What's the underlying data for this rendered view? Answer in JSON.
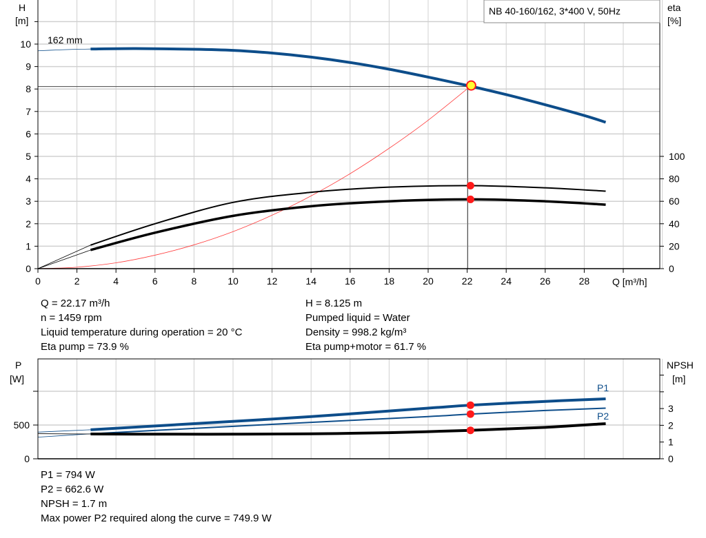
{
  "chart_data": [
    {
      "type": "line",
      "title": "NB 40-160/162, 3*400 V, 50Hz",
      "xlabel": "Q [m³/h]",
      "ylabel": "H\n[m]",
      "ylabel_right": "eta\n[%]",
      "xlim": [
        0,
        32
      ],
      "ylim": [
        0,
        12
      ],
      "ylim_right": [
        0,
        240
      ],
      "x_ticks": [
        0,
        2,
        4,
        6,
        8,
        10,
        12,
        14,
        16,
        18,
        20,
        22,
        24,
        26,
        28
      ],
      "y_ticks": [
        0,
        1,
        2,
        3,
        4,
        5,
        6,
        7,
        8,
        9,
        10
      ],
      "y_right_ticks": [
        0,
        20,
        40,
        60,
        80,
        100
      ],
      "grid": true,
      "annotations": [
        {
          "text": "162 mm"
        }
      ],
      "duty_point": {
        "Q": 22.17,
        "H": 8.125,
        "eta_pump": 73.9,
        "eta_pump_motor": 61.7
      },
      "series": [
        {
          "key": "H",
          "color": "#0d4d8a",
          "axis": "left",
          "extrapolated": {
            "x": [
              0,
              1,
              2,
              2.7
            ],
            "y": [
              9.7,
              9.74,
              9.77,
              9.78
            ]
          },
          "x": [
            2.7,
            5,
            8,
            10,
            12,
            14,
            16,
            18,
            20,
            22.17,
            24,
            26,
            28,
            29.1
          ],
          "y": [
            9.78,
            9.8,
            9.77,
            9.72,
            9.6,
            9.42,
            9.18,
            8.88,
            8.53,
            8.125,
            7.75,
            7.3,
            6.82,
            6.52
          ]
        },
        {
          "key": "eta_pump",
          "color": "#000000",
          "axis": "right",
          "extrapolated": {
            "x": [
              0,
              2.7
            ],
            "y": [
              0,
              21
            ]
          },
          "x": [
            2.7,
            6,
            10,
            14,
            18,
            22.17,
            26,
            29.1
          ],
          "y": [
            21,
            40,
            59,
            68,
            72.6,
            73.9,
            72,
            69
          ]
        },
        {
          "key": "eta_pump_motor",
          "color": "#000000",
          "axis": "right",
          "extrapolated": {
            "x": [
              0,
              2.7
            ],
            "y": [
              0,
              16.6
            ]
          },
          "x": [
            2.7,
            6,
            10,
            14,
            18,
            22.17,
            26,
            29.1
          ],
          "y": [
            16.6,
            32,
            47,
            55.6,
            60,
            61.7,
            60,
            57
          ]
        },
        {
          "key": "system_curve",
          "color": "#ff3b3b",
          "axis": "left",
          "x": [
            0,
            2,
            4,
            6,
            8,
            10,
            12,
            14,
            16,
            18,
            20,
            22.17
          ],
          "y": [
            0,
            0.066,
            0.26,
            0.6,
            1.06,
            1.65,
            2.38,
            3.24,
            4.23,
            5.36,
            6.61,
            8.125
          ]
        }
      ]
    },
    {
      "type": "line",
      "ylabel": "P\n[W]",
      "ylabel_right": "NPSH\n[m]",
      "xlim": [
        0,
        32
      ],
      "ylim": [
        0,
        1500
      ],
      "ylim_right": [
        0,
        6
      ],
      "y_ticks": [
        0,
        500,
        1000
      ],
      "y_tick_labels": [
        "0",
        "500",
        ""
      ],
      "y_right_ticks": [
        0,
        1,
        2,
        3,
        4,
        5
      ],
      "y_right_tick_labels": [
        "0",
        "1",
        "2",
        "3",
        "",
        ""
      ],
      "grid": true,
      "duty_point": {
        "Q": 22.17,
        "P1": 794,
        "P2": 662.6,
        "NPSH": 1.7
      },
      "series": [
        {
          "name": "P1",
          "color": "#0d4d8a",
          "axis": "left",
          "extrapolated": {
            "x": [
              0,
              2.7
            ],
            "y": [
              395,
              430
            ]
          },
          "x": [
            2.7,
            8,
            14,
            20,
            22.17,
            26,
            29.1
          ],
          "y": [
            430,
            520,
            625,
            750,
            794,
            850,
            888
          ]
        },
        {
          "name": "P2",
          "color": "#0d4d8a",
          "axis": "left",
          "extrapolated": {
            "x": [
              0,
              2.7
            ],
            "y": [
              320,
              370
            ]
          },
          "x": [
            2.7,
            8,
            14,
            20,
            22.17,
            26,
            29.1
          ],
          "y": [
            370,
            450,
            540,
            625,
            662.6,
            715,
            749.9
          ]
        },
        {
          "key": "NPSH",
          "color": "#000000",
          "axis": "right",
          "extrapolated": {
            "x": [
              0,
              2.7
            ],
            "y": [
              1.5,
              1.48
            ]
          },
          "x": [
            2.7,
            6,
            10,
            14,
            18,
            22.17,
            26,
            29.1
          ],
          "y": [
            1.48,
            1.47,
            1.47,
            1.49,
            1.56,
            1.7,
            1.88,
            2.1
          ]
        }
      ]
    }
  ],
  "info_top": {
    "left": [
      "Q = 22.17 m³/h",
      "n = 1459 rpm",
      "Liquid temperature during operation = 20 °C",
      "Eta pump = 73.9 %"
    ],
    "right": [
      "H = 8.125 m",
      "Pumped liquid = Water",
      "Density = 998.2 kg/m³",
      "Eta pump+motor = 61.7 %"
    ]
  },
  "info_bottom": [
    "P1 = 794 W",
    "P2 = 662.6 W",
    "NPSH = 1.7 m",
    "Max power P2 required along the curve = 749.9 W"
  ]
}
